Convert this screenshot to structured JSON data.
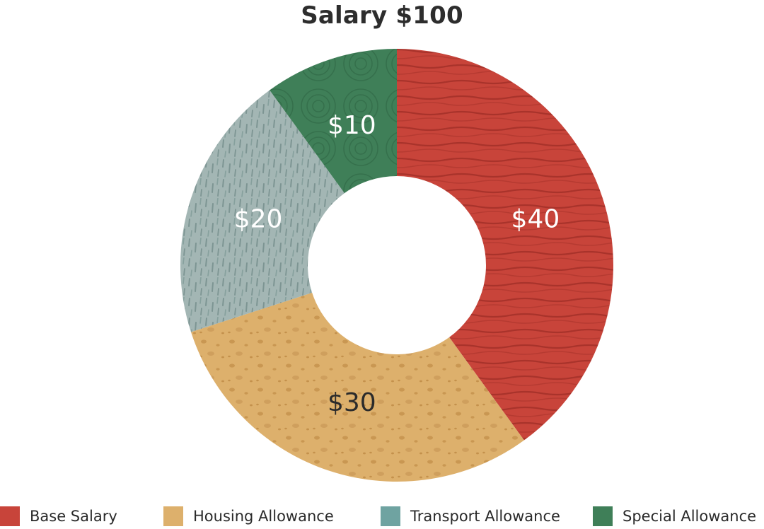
{
  "chart_data": {
    "type": "pie",
    "title": "Salary $100",
    "donut": true,
    "legend_position": "bottom",
    "categories": [
      "Base Salary",
      "Housing Allowance",
      "Transport Allowance",
      "Special Allowance"
    ],
    "values": [
      40,
      30,
      20,
      10
    ],
    "data_labels": [
      "$40",
      "$30",
      "$20",
      "$10"
    ],
    "colors": [
      "#c8443a",
      "#ddb06c",
      "#a3b6b4",
      "#3f7f58"
    ],
    "legend_colors": [
      "#c8443a",
      "#ddb06c",
      "#6fa3a1",
      "#3f7f58"
    ],
    "label_colors": [
      "#ffffff",
      "#2b2b2b",
      "#ffffff",
      "#ffffff"
    ]
  }
}
